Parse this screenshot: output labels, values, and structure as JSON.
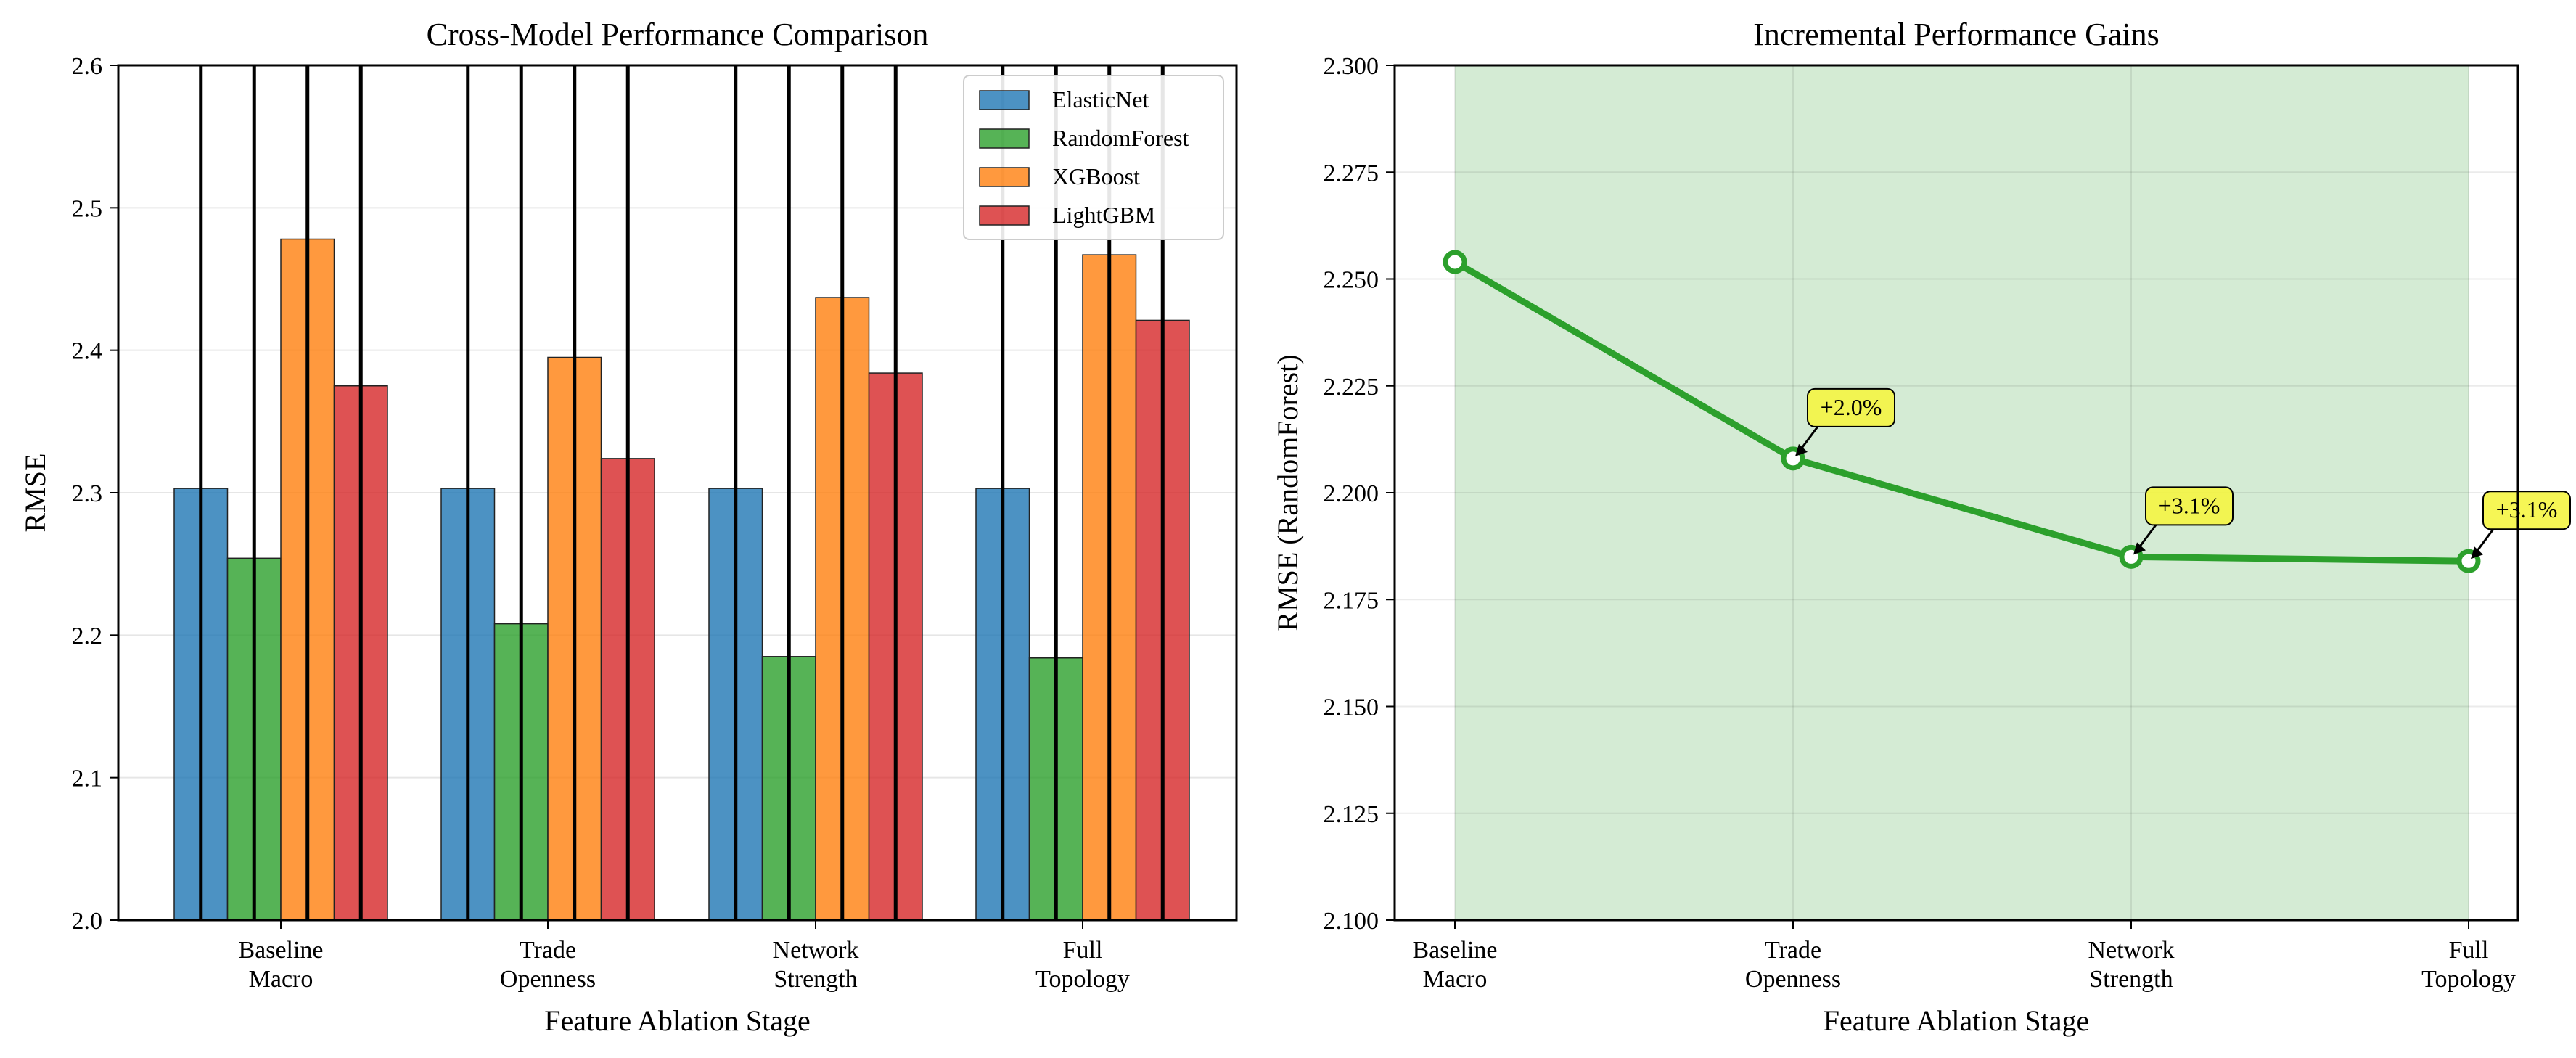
{
  "chart_data": [
    {
      "type": "bar",
      "title": "Cross-Model Performance Comparison",
      "xlabel": "Feature Ablation Stage",
      "ylabel": "RMSE",
      "categories": [
        [
          "Baseline",
          "Macro"
        ],
        [
          "Trade",
          "Openness"
        ],
        [
          "Network",
          "Strength"
        ],
        [
          "Full",
          "Topology"
        ]
      ],
      "ylim": [
        2.0,
        2.6
      ],
      "yticks": [
        "2.0",
        "2.1",
        "2.2",
        "2.3",
        "2.4",
        "2.5",
        "2.6"
      ],
      "grid": true,
      "legend_position": "top-right",
      "series": [
        {
          "name": "ElasticNet",
          "color": "#1f77b4",
          "values": [
            2.303,
            2.303,
            2.303,
            2.303
          ]
        },
        {
          "name": "RandomForest",
          "color": "#2ca02c",
          "values": [
            2.254,
            2.208,
            2.185,
            2.184
          ]
        },
        {
          "name": "XGBoost",
          "color": "#ff7f0e",
          "values": [
            2.478,
            2.395,
            2.437,
            2.467
          ]
        },
        {
          "name": "LightGBM",
          "color": "#d62728",
          "values": [
            2.375,
            2.324,
            2.384,
            2.421
          ]
        }
      ]
    },
    {
      "type": "line",
      "title": "Incremental Performance Gains",
      "xlabel": "Feature Ablation Stage",
      "ylabel": "RMSE (RandomForest)",
      "categories": [
        [
          "Baseline",
          "Macro"
        ],
        [
          "Trade",
          "Openness"
        ],
        [
          "Network",
          "Strength"
        ],
        [
          "Full",
          "Topology"
        ]
      ],
      "ylim": [
        2.1,
        2.3
      ],
      "yticks": [
        "2.100",
        "2.125",
        "2.150",
        "2.175",
        "2.200",
        "2.225",
        "2.250",
        "2.275",
        "2.300"
      ],
      "grid": true,
      "line_color": "#2ca02c",
      "fill_color": "#d4ebd4",
      "values": [
        2.254,
        2.208,
        2.185,
        2.184
      ],
      "annotations": [
        {
          "index": 1,
          "text": "+2.0%"
        },
        {
          "index": 2,
          "text": "+3.1%"
        },
        {
          "index": 3,
          "text": "+3.1%"
        }
      ]
    }
  ]
}
